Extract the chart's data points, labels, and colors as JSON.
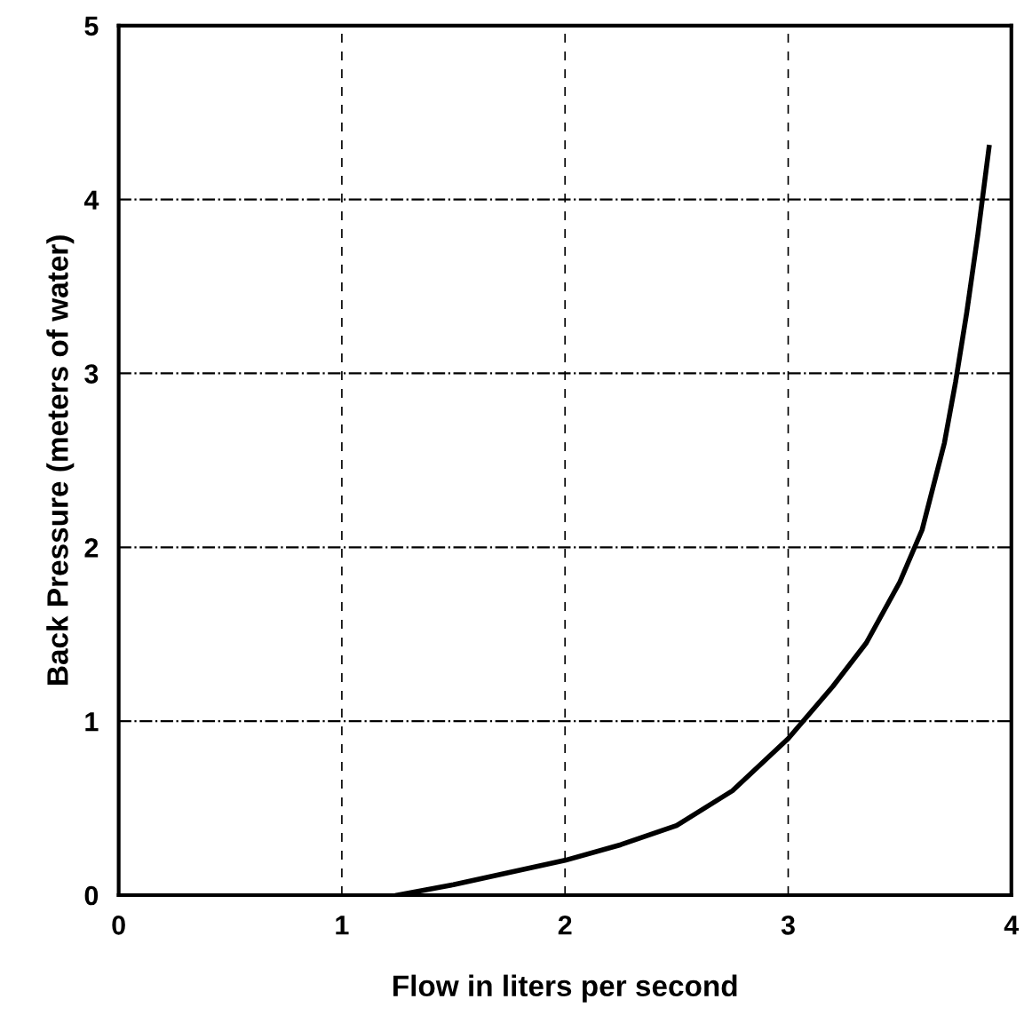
{
  "chart_data": {
    "type": "line",
    "xlabel": "Flow in liters per second",
    "ylabel": "Back Pressure (meters of water)",
    "x": [
      1.25,
      1.5,
      1.75,
      2.0,
      2.25,
      2.5,
      2.75,
      3.0,
      3.2,
      3.35,
      3.5,
      3.6,
      3.7,
      3.75,
      3.8,
      3.85,
      3.9
    ],
    "values": [
      0.0,
      0.06,
      0.13,
      0.2,
      0.29,
      0.4,
      0.6,
      0.9,
      1.2,
      1.45,
      1.8,
      2.1,
      2.6,
      2.95,
      3.35,
      3.8,
      4.3
    ],
    "color": "#000000",
    "xlim": [
      0,
      4
    ],
    "ylim": [
      0,
      5
    ],
    "xticks": [
      0,
      1,
      2,
      3,
      4
    ],
    "yticks": [
      0,
      1,
      2,
      3,
      4,
      5
    ],
    "grid": true,
    "marker": "none",
    "line_style": "solid"
  }
}
